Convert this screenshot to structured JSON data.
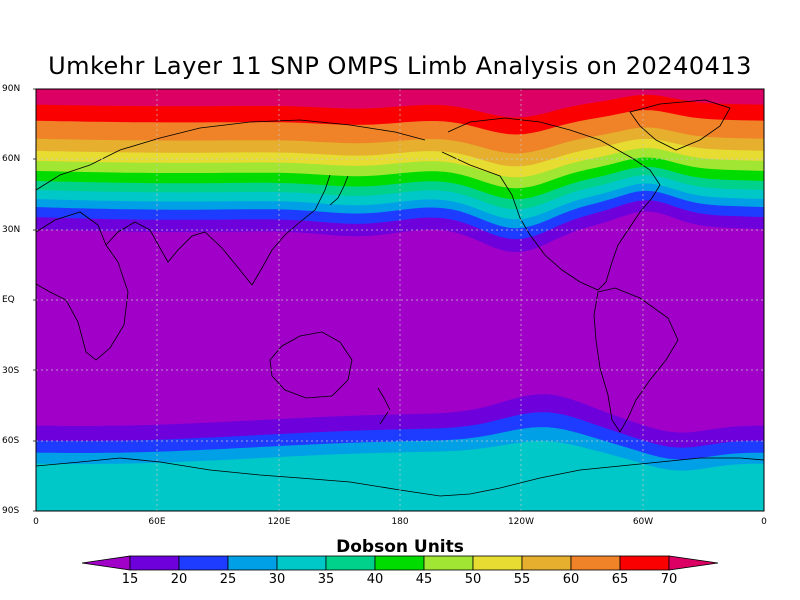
{
  "title": "Umkehr Layer 11 SNP OMPS Limb Analysis on 20240413",
  "lat_labels": [
    "90N",
    "60N",
    "30N",
    "EQ",
    "30S",
    "60S",
    "90S"
  ],
  "lon_labels": [
    "0",
    "60E",
    "120E",
    "180",
    "120W",
    "60W",
    "0"
  ],
  "colorbar": {
    "title": "Dobson Units",
    "levels": [
      "15",
      "20",
      "25",
      "30",
      "35",
      "40",
      "45",
      "50",
      "55",
      "60",
      "65",
      "70"
    ],
    "colors": [
      "#a000c8",
      "#6e00dc",
      "#1e3cff",
      "#00a0e6",
      "#00c8c8",
      "#00d28c",
      "#00dc00",
      "#a0e632",
      "#e6dc32",
      "#e6af2d",
      "#f08228",
      "#fa0000",
      "#dc0064"
    ]
  },
  "map_layers": {
    "background_color": "#a000c8",
    "grid": "dotted",
    "coastlines": true
  }
}
